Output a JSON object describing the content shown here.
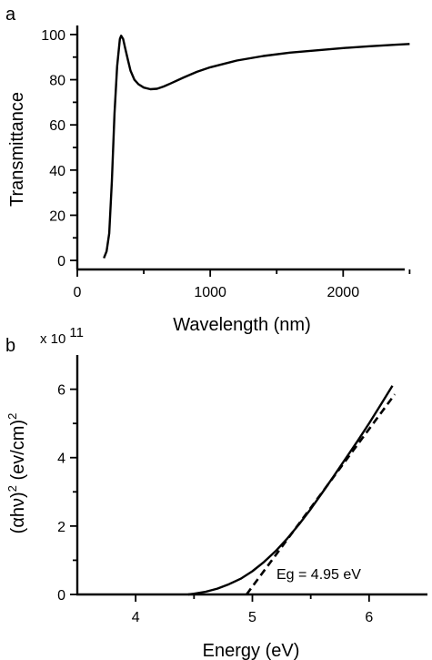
{
  "chart_data": [
    {
      "type": "line",
      "panel_label": "a",
      "xlabel": "Wavelength (nm)",
      "ylabel": "Transmittance",
      "xlim": [
        0,
        2600
      ],
      "ylim": [
        -4,
        104
      ],
      "xticks": [
        0,
        1000,
        2000
      ],
      "yticks": [
        0,
        20,
        40,
        60,
        80,
        100
      ],
      "grid": false,
      "series": [
        {
          "x": [
            200,
            220,
            240,
            260,
            280,
            300,
            320,
            330,
            345,
            360,
            380,
            400,
            430,
            460,
            500,
            550,
            600,
            650,
            700,
            800,
            900,
            1000,
            1200,
            1400,
            1600,
            1800,
            2000,
            2200,
            2400,
            2500
          ],
          "y": [
            1,
            4,
            12,
            35,
            65,
            86,
            98,
            99.5,
            98,
            94,
            89,
            84,
            80,
            78,
            76.5,
            75.8,
            76,
            77,
            78.3,
            81,
            83.5,
            85.5,
            88.5,
            90.5,
            92,
            93,
            94,
            94.8,
            95.5,
            95.8
          ]
        }
      ]
    },
    {
      "type": "line",
      "panel_label": "b",
      "xlabel": "Energy (eV)",
      "ylabel": "(αhν)² (ev/cm)²",
      "y_multiplier_base": "x 10",
      "y_multiplier_exp": "11",
      "xlim": [
        3.5,
        6.5
      ],
      "ylim": [
        0,
        7
      ],
      "xticks": [
        4,
        5,
        6
      ],
      "yticks": [
        0,
        2,
        4,
        6
      ],
      "grid": false,
      "series": [
        {
          "x": [
            4.45,
            4.5,
            4.6,
            4.7,
            4.8,
            4.9,
            5.0,
            5.1,
            5.2,
            5.3,
            5.4,
            5.5,
            5.6,
            5.7,
            5.8,
            5.9,
            6.0,
            6.1,
            6.2
          ],
          "y": [
            0,
            0.02,
            0.08,
            0.17,
            0.3,
            0.46,
            0.68,
            0.95,
            1.27,
            1.64,
            2.05,
            2.5,
            2.98,
            3.47,
            3.98,
            4.48,
            5.0,
            5.55,
            6.1
          ]
        }
      ],
      "fit_line": {
        "x": [
          4.95,
          6.22
        ],
        "y": [
          0,
          5.85
        ]
      },
      "annotation": "Eg = 4.95 eV"
    }
  ]
}
